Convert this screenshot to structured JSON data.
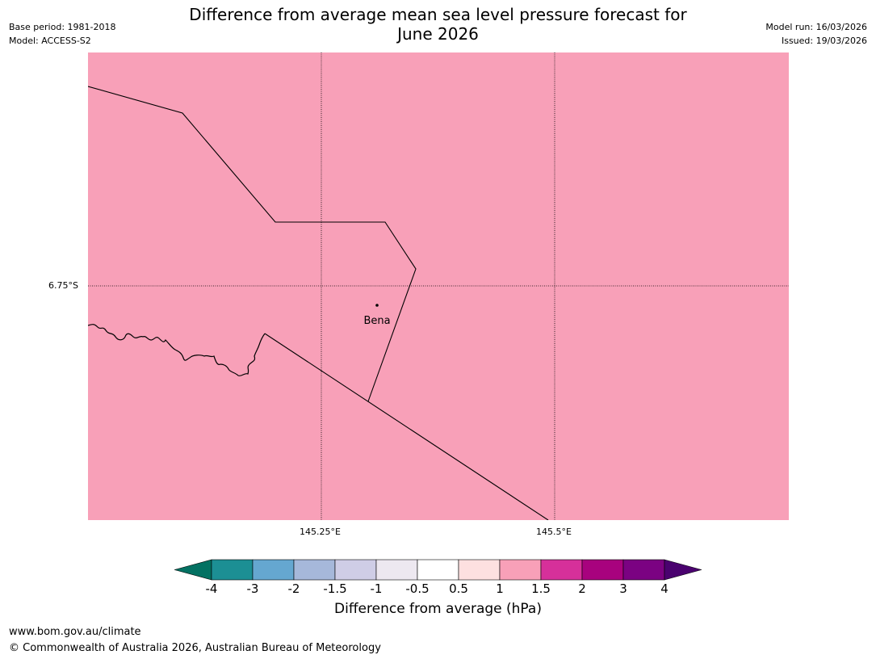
{
  "title": {
    "line1": "Difference from average mean sea level pressure forecast for",
    "line2": "June 2026"
  },
  "meta_left": {
    "base_period": "Base period: 1981-2018",
    "model": "Model: ACCESS-S2"
  },
  "meta_right": {
    "model_run": "Model run: 16/03/2026",
    "issued": "Issued: 19/03/2026"
  },
  "map": {
    "fill_color": "#f8a0b8",
    "lat_label": "6.75°S",
    "lon_labels": [
      "145.25°E",
      "145.5°E"
    ],
    "place": "Bena"
  },
  "colorbar": {
    "title": "Difference from average (hPa)",
    "labels": [
      "-4",
      "-3",
      "-2",
      "-1.5",
      "-1",
      "-0.5",
      "0.5",
      "1",
      "1.5",
      "2",
      "3",
      "4"
    ],
    "colors": [
      "#037162",
      "#1c8f94",
      "#65a7d0",
      "#a6b8da",
      "#cfcde6",
      "#ede8f0",
      "#ffffff",
      "#fde0e0",
      "#f8a0b8",
      "#d6309a",
      "#a8027e",
      "#7b0282",
      "#4a026f"
    ]
  },
  "footer": {
    "url": "www.bom.gov.au/climate",
    "copyright": "© Commonwealth of Australia 2026, Australian Bureau of Meteorology"
  }
}
